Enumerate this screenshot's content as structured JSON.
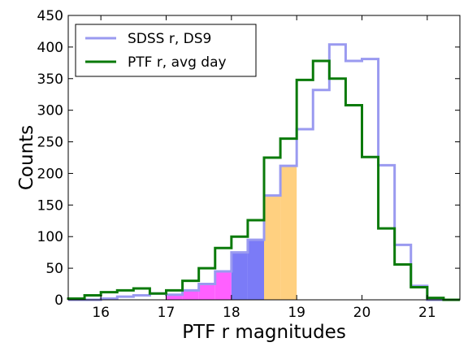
{
  "chart_data": {
    "type": "histogram",
    "xlabel": "PTF r magnitudes",
    "ylabel": "Counts",
    "xlim": [
      15.5,
      21.5
    ],
    "ylim": [
      0,
      450
    ],
    "xticks": [
      16,
      17,
      18,
      19,
      20,
      21
    ],
    "yticks": [
      0,
      50,
      100,
      150,
      200,
      250,
      300,
      350,
      400,
      450
    ],
    "grid": false,
    "legend": {
      "placement": "top-left",
      "entries": [
        {
          "label": "SDSS r, DS9",
          "color": "#9a9af0"
        },
        {
          "label": "PTF r, avg day",
          "color": "#0a7a0a"
        }
      ]
    },
    "bin_edges": [
      15.5,
      15.75,
      16.0,
      16.25,
      16.5,
      16.75,
      17.0,
      17.25,
      17.5,
      17.75,
      18.0,
      18.25,
      18.5,
      18.75,
      19.0,
      19.25,
      19.5,
      19.75,
      20.0,
      20.25,
      20.5,
      20.75,
      21.0,
      21.25,
      21.5
    ],
    "series": [
      {
        "name": "SDSS r, DS9",
        "color": "#9a9af0",
        "values": [
          0,
          0,
          2,
          5,
          7,
          10,
          8,
          15,
          25,
          45,
          75,
          95,
          165,
          212,
          270,
          332,
          404,
          378,
          381,
          213,
          87,
          22,
          0,
          0
        ]
      },
      {
        "name": "PTF r, avg day",
        "color": "#0a7a0a",
        "values": [
          2,
          7,
          12,
          15,
          18,
          10,
          15,
          30,
          50,
          82,
          100,
          126,
          225,
          255,
          348,
          378,
          350,
          308,
          226,
          113,
          56,
          20,
          3,
          0
        ]
      }
    ],
    "shaded_regions": [
      {
        "x": [
          17.0,
          18.0
        ],
        "color": "#ff60ff"
      },
      {
        "x": [
          18.0,
          18.5
        ],
        "color": "#7b7bf7"
      },
      {
        "x": [
          18.5,
          19.0
        ],
        "color": "#ffd080"
      }
    ]
  }
}
